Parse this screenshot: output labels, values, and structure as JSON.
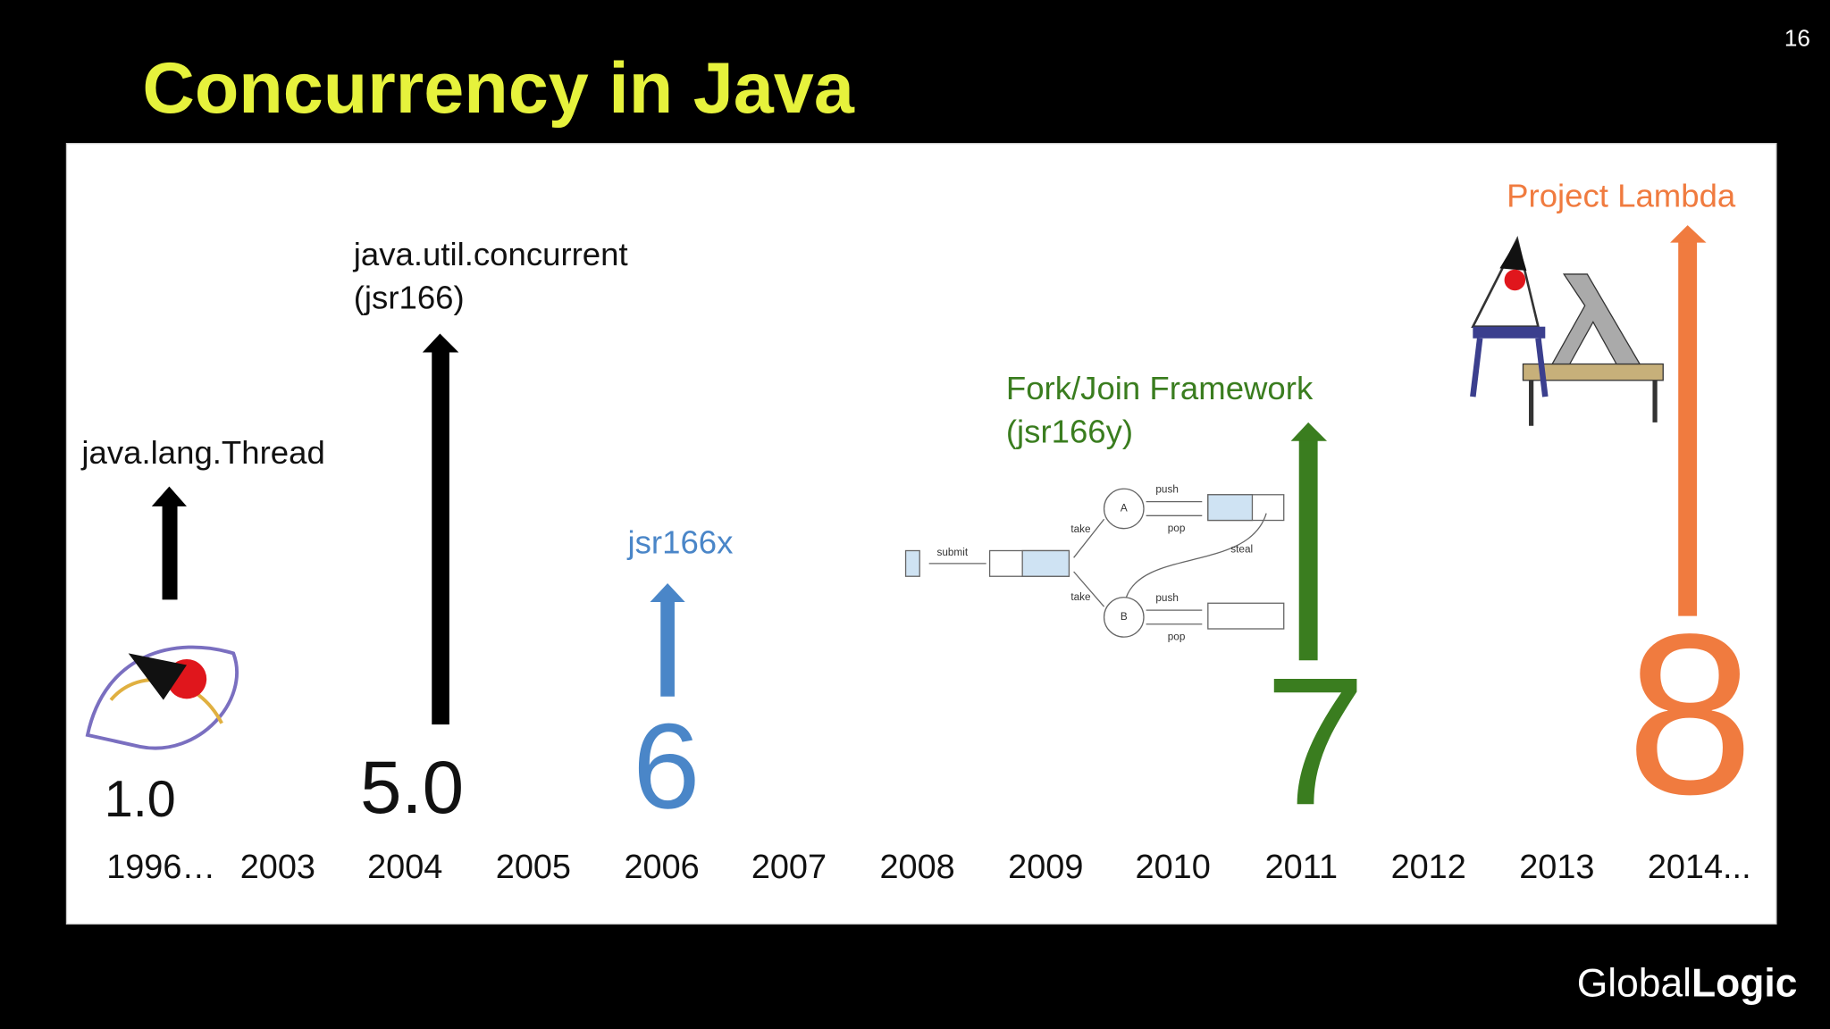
{
  "slide": {
    "page_number": "16",
    "title": "Concurrency in Java"
  },
  "timeline": {
    "years": [
      "1996…",
      "2003",
      "2004",
      "2005",
      "2006",
      "2007",
      "2008",
      "2009",
      "2010",
      "2011",
      "2012",
      "2013",
      "2014..."
    ]
  },
  "releases": [
    {
      "version": "1.0",
      "label": [
        "java.lang.Thread"
      ]
    },
    {
      "version": "5.0",
      "label": [
        "java.util.concurrent",
        "(jsr166)"
      ]
    },
    {
      "version": "6",
      "label": [
        "jsr166x"
      ]
    },
    {
      "version": "7",
      "label": [
        "Fork/Join Framework",
        "(jsr166y)"
      ]
    },
    {
      "version": "8",
      "label": [
        "Project Lambda"
      ]
    }
  ],
  "fork_join_diagram": {
    "nodes": [
      "A",
      "B"
    ],
    "labels": [
      "submit",
      "take",
      "take",
      "push",
      "pop",
      "push",
      "pop",
      "steal"
    ]
  },
  "footer": {
    "logo_prefix": "Global",
    "logo_suffix": "Logic"
  }
}
